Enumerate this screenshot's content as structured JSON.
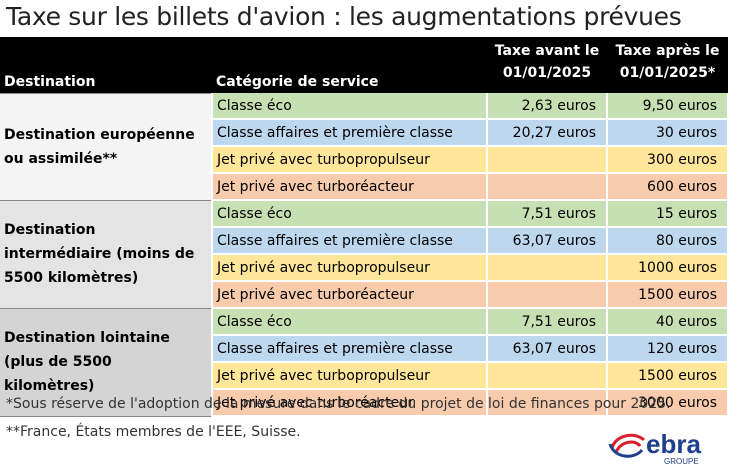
{
  "title": "Taxe sur les billets d'avion : les augmentations prévues",
  "table": {
    "header": [
      "Destination",
      "Catégorie de service",
      "Taxe avant le 01/01/2025",
      "Taxe après le 01/01/2025*"
    ],
    "groups": [
      {
        "destination": "Destination européenne ou assimilée**",
        "rows": [
          [
            "Classe éco",
            "2,63 euros",
            "9,50 euros"
          ],
          [
            "Classe affaires et première classe",
            "20,27 euros",
            "30 euros"
          ],
          [
            "Jet privé avec turbopropulseur",
            null,
            "300 euros"
          ],
          [
            "Jet privé avec turboréacteur",
            null,
            "600 euros"
          ]
        ]
      },
      {
        "destination": "Destination intermédiaire (moins de 5500 kilomètres)",
        "rows": [
          [
            "Classe éco",
            "7,51 euros",
            "15 euros"
          ],
          [
            "Classe affaires et première classe",
            "63,07 euros",
            "80 euros"
          ],
          [
            "Jet privé avec turbopropulseur",
            null,
            "1000 euros"
          ],
          [
            "Jet privé avec turboréacteur",
            null,
            "1500 euros"
          ]
        ]
      },
      {
        "destination": "Destination lointaine (plus de 5500 kilomètres)",
        "rows": [
          [
            "Classe éco",
            "7,51 euros",
            "40 euros"
          ],
          [
            "Classe affaires et première classe",
            "63,07 euros",
            "120 euros"
          ],
          [
            "Jet privé avec turbopropulseur",
            null,
            "1500 euros"
          ],
          [
            "Jet privé avec turboréacteur",
            null,
            "3000 euros"
          ]
        ]
      }
    ]
  },
  "footnotes": [
    "*Sous réserve de l'adoption de la mesure dans le cadre du projet de loi de finances pour 2025.",
    "**France, États membres de l'EEE, Suisse."
  ],
  "logo": {
    "name": "ebra",
    "sub": "GROUPE"
  }
}
